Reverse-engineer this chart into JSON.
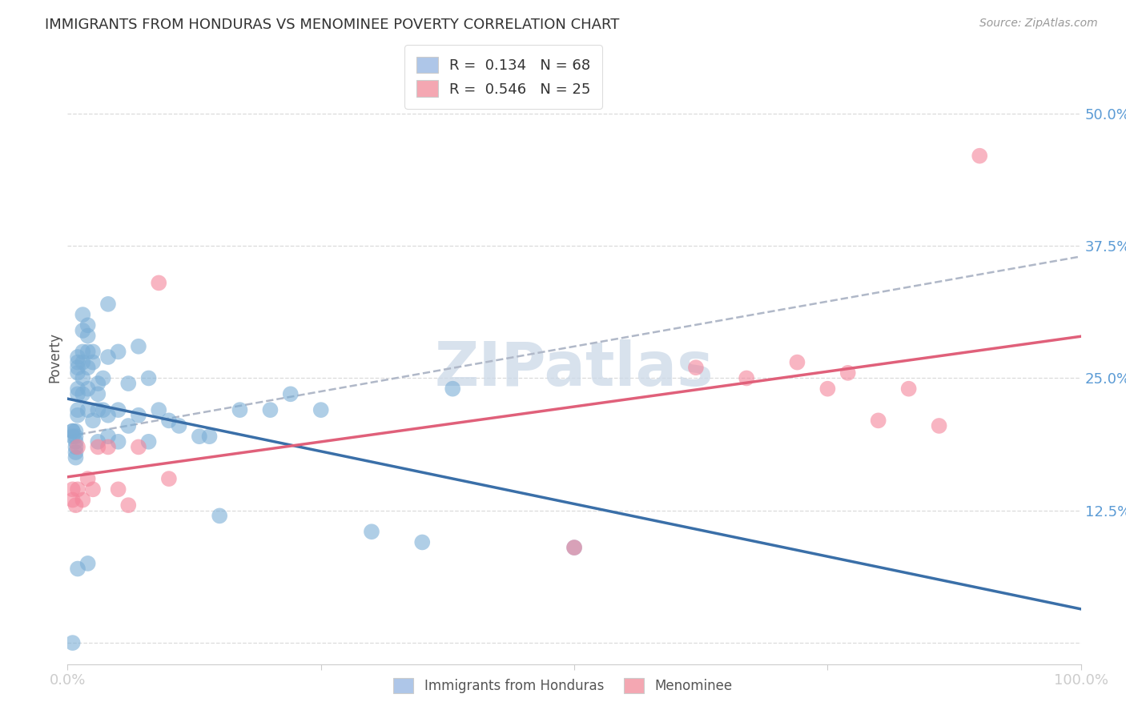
{
  "title": "IMMIGRANTS FROM HONDURAS VS MENOMINEE POVERTY CORRELATION CHART",
  "source": "Source: ZipAtlas.com",
  "ylabel": "Poverty",
  "xlim": [
    0.0,
    1.0
  ],
  "ylim": [
    -0.02,
    0.56
  ],
  "yticks": [
    0.0,
    0.125,
    0.25,
    0.375,
    0.5
  ],
  "ytick_labels": [
    "",
    "12.5%",
    "25.0%",
    "37.5%",
    "50.0%"
  ],
  "legend_blue_label": "R =  0.134   N = 68",
  "legend_pink_label": "R =  0.546   N = 25",
  "legend_blue_color": "#aec6e8",
  "legend_pink_color": "#f4a7b2",
  "scatter_blue_color": "#7aaed6",
  "scatter_pink_color": "#f4849a",
  "regression_blue_color": "#3a6fa8",
  "regression_pink_color": "#e0607a",
  "dashed_color": "#b0b8c8",
  "watermark_text": "ZIPatlas",
  "blue_x": [
    0.005,
    0.005,
    0.005,
    0.008,
    0.008,
    0.008,
    0.008,
    0.008,
    0.008,
    0.01,
    0.01,
    0.01,
    0.01,
    0.01,
    0.01,
    0.01,
    0.01,
    0.015,
    0.015,
    0.015,
    0.015,
    0.015,
    0.015,
    0.02,
    0.02,
    0.02,
    0.02,
    0.02,
    0.02,
    0.025,
    0.025,
    0.025,
    0.03,
    0.03,
    0.03,
    0.03,
    0.035,
    0.035,
    0.04,
    0.04,
    0.04,
    0.04,
    0.05,
    0.05,
    0.05,
    0.06,
    0.06,
    0.07,
    0.07,
    0.08,
    0.08,
    0.09,
    0.1,
    0.11,
    0.13,
    0.14,
    0.15,
    0.17,
    0.2,
    0.22,
    0.25,
    0.3,
    0.35,
    0.38,
    0.5,
    0.01,
    0.02,
    0.005
  ],
  "blue_y": [
    0.2,
    0.2,
    0.195,
    0.19,
    0.185,
    0.195,
    0.2,
    0.175,
    0.18,
    0.27,
    0.265,
    0.26,
    0.255,
    0.24,
    0.235,
    0.22,
    0.215,
    0.31,
    0.295,
    0.275,
    0.265,
    0.25,
    0.235,
    0.3,
    0.29,
    0.275,
    0.26,
    0.24,
    0.22,
    0.275,
    0.265,
    0.21,
    0.245,
    0.235,
    0.22,
    0.19,
    0.25,
    0.22,
    0.32,
    0.27,
    0.215,
    0.195,
    0.275,
    0.22,
    0.19,
    0.245,
    0.205,
    0.28,
    0.215,
    0.25,
    0.19,
    0.22,
    0.21,
    0.205,
    0.195,
    0.195,
    0.12,
    0.22,
    0.22,
    0.235,
    0.22,
    0.105,
    0.095,
    0.24,
    0.09,
    0.07,
    0.075,
    0.0
  ],
  "pink_x": [
    0.005,
    0.005,
    0.008,
    0.01,
    0.015,
    0.02,
    0.025,
    0.03,
    0.04,
    0.05,
    0.06,
    0.07,
    0.09,
    0.1,
    0.01,
    0.5,
    0.62,
    0.67,
    0.72,
    0.75,
    0.77,
    0.8,
    0.83,
    0.86,
    0.9
  ],
  "pink_y": [
    0.145,
    0.135,
    0.13,
    0.145,
    0.135,
    0.155,
    0.145,
    0.185,
    0.185,
    0.145,
    0.13,
    0.185,
    0.34,
    0.155,
    0.185,
    0.09,
    0.26,
    0.25,
    0.265,
    0.24,
    0.255,
    0.21,
    0.24,
    0.205,
    0.46
  ]
}
